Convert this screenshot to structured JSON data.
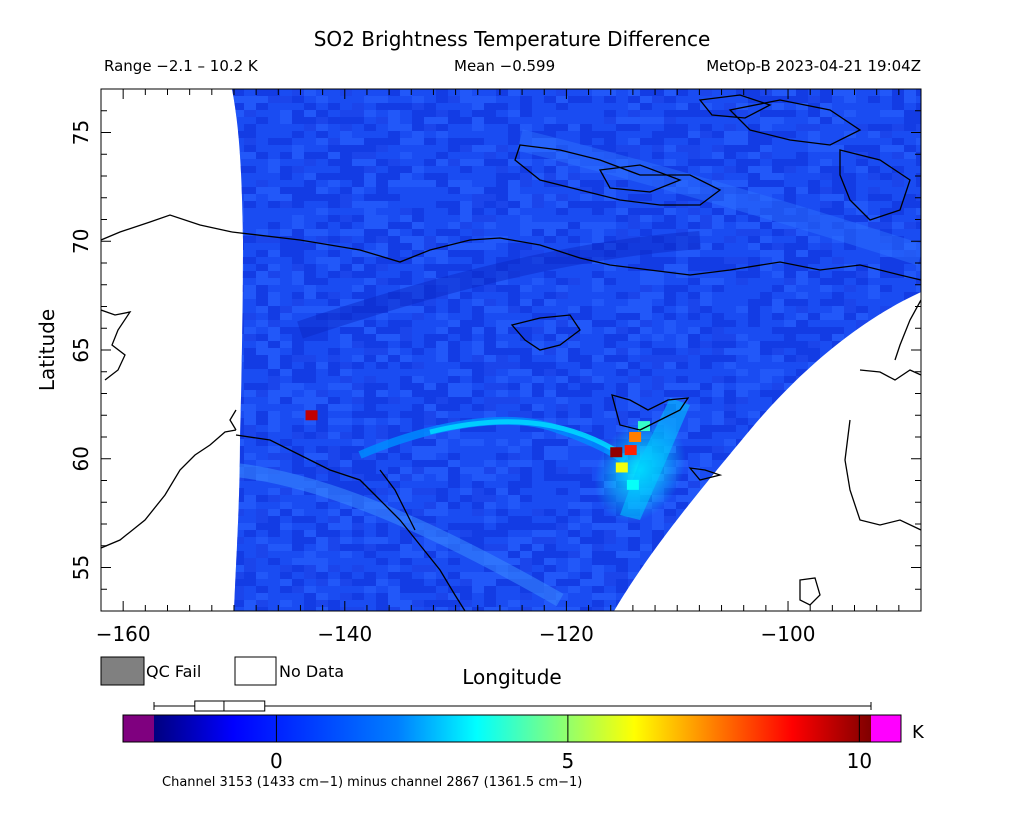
{
  "chart_data": {
    "type": "heatmap",
    "title": "SO2 Brightness Temperature Difference",
    "header": {
      "range": "Range −2.1 – 10.2 K",
      "mean": "Mean −0.599",
      "satellite_time": "MetOp-B 2023-04-21 19:04Z"
    },
    "xlabel": "Longitude",
    "ylabel": "Latitude",
    "xlim": [
      -162,
      -88
    ],
    "ylim": [
      53,
      77
    ],
    "x_ticks": [
      -160,
      -140,
      -120,
      -100
    ],
    "x_tick_labels": [
      "−160",
      "−140",
      "−120",
      "−100"
    ],
    "y_ticks": [
      55,
      60,
      65,
      70,
      75
    ],
    "y_tick_labels": [
      "55",
      "60",
      "65",
      "70",
      "75"
    ],
    "grid": false,
    "legend": [
      {
        "label": "QC Fail",
        "color": "#808080"
      },
      {
        "label": "No Data",
        "color": "#ffffff"
      }
    ],
    "colorbar": {
      "range": [
        -2.1,
        10.2
      ],
      "ticks": [
        0,
        5,
        10
      ],
      "tick_labels": [
        "0",
        "5",
        "10"
      ],
      "unit": "K",
      "under_color": "#7f007f",
      "over_color": "#ff00ff",
      "caption": "Channel 3153 (1433 cm−1) minus channel 2867 (1361.5 cm−1)",
      "box_whisker": {
        "min": -2.1,
        "q1": -1.4,
        "median": -0.9,
        "q3": -0.2,
        "max": 10.2
      }
    },
    "background_value": -0.6,
    "hotspots": [
      {
        "lon": -115.5,
        "lat": 60.3,
        "value": 10.0
      },
      {
        "lon": -114.2,
        "lat": 60.4,
        "value": 8.5
      },
      {
        "lon": -113.8,
        "lat": 61.0,
        "value": 7.5
      },
      {
        "lon": -115.0,
        "lat": 59.6,
        "value": 6.0
      },
      {
        "lon": -113.0,
        "lat": 61.5,
        "value": 4.0
      },
      {
        "lon": -114.0,
        "lat": 58.8,
        "value": 3.5
      },
      {
        "lon": -143.0,
        "lat": 62.0,
        "value": 9.5
      }
    ],
    "plume_arc": {
      "value_peak": 3.0,
      "value_tail": 1.0
    },
    "colors": {
      "swath_base": "#1446f0",
      "coast": "#000000"
    }
  }
}
